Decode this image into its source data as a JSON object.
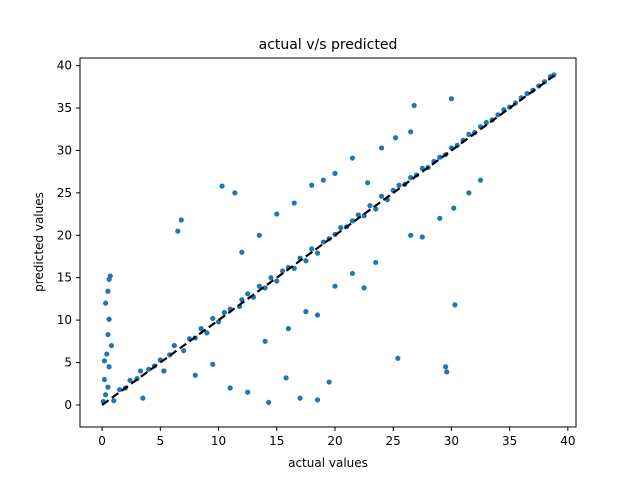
{
  "chart_data": {
    "type": "scatter",
    "title": "actual v/s predicted",
    "xlabel": "actual values",
    "ylabel": "predicted values",
    "xlim": [
      -1.9,
      40.7
    ],
    "ylim": [
      -2.6,
      40.9
    ],
    "xticks": [
      0,
      5,
      10,
      15,
      20,
      25,
      30,
      35,
      40
    ],
    "yticks": [
      0,
      5,
      10,
      15,
      20,
      25,
      30,
      35,
      40
    ],
    "grid": false,
    "colors": {
      "points": "#1f77b4",
      "reference_line": "#000000"
    },
    "series": [
      {
        "kind": "points",
        "marker": "circle",
        "points": [
          [
            0.1,
            0.4
          ],
          [
            0.3,
            1.2
          ],
          [
            0.5,
            2.1
          ],
          [
            0.2,
            3.0
          ],
          [
            0.6,
            4.5
          ],
          [
            0.4,
            6.0
          ],
          [
            0.5,
            8.3
          ],
          [
            0.6,
            10.1
          ],
          [
            0.3,
            12.0
          ],
          [
            0.5,
            13.4
          ],
          [
            0.6,
            14.8
          ],
          [
            0.7,
            15.2
          ],
          [
            0.2,
            5.2
          ],
          [
            0.8,
            7.0
          ],
          [
            1.0,
            0.5
          ],
          [
            1.5,
            1.8
          ],
          [
            2.0,
            2.0
          ],
          [
            2.4,
            2.9
          ],
          [
            3.0,
            3.1
          ],
          [
            3.3,
            4.0
          ],
          [
            3.5,
            0.8
          ],
          [
            4.0,
            4.2
          ],
          [
            4.5,
            4.6
          ],
          [
            5.0,
            5.3
          ],
          [
            5.3,
            4.0
          ],
          [
            5.8,
            5.9
          ],
          [
            6.2,
            7.0
          ],
          [
            6.5,
            20.5
          ],
          [
            6.8,
            21.8
          ],
          [
            7.0,
            6.4
          ],
          [
            7.5,
            7.8
          ],
          [
            8.0,
            7.9
          ],
          [
            8.5,
            9.0
          ],
          [
            9.0,
            8.5
          ],
          [
            9.5,
            10.2
          ],
          [
            10.0,
            9.8
          ],
          [
            10.3,
            25.8
          ],
          [
            10.5,
            10.9
          ],
          [
            11.0,
            11.3
          ],
          [
            11.4,
            25.0
          ],
          [
            11.8,
            11.6
          ],
          [
            12.0,
            12.4
          ],
          [
            12.5,
            13.1
          ],
          [
            13.0,
            12.7
          ],
          [
            13.5,
            14.0
          ],
          [
            14.0,
            13.8
          ],
          [
            14.3,
            0.3
          ],
          [
            14.5,
            15.0
          ],
          [
            15.0,
            14.6
          ],
          [
            15.5,
            15.8
          ],
          [
            16.0,
            16.2
          ],
          [
            16.5,
            16.1
          ],
          [
            17.0,
            17.3
          ],
          [
            17.5,
            17.0
          ],
          [
            18.0,
            18.4
          ],
          [
            18.5,
            17.9
          ],
          [
            19.0,
            19.2
          ],
          [
            19.5,
            19.6
          ],
          [
            20.0,
            20.1
          ],
          [
            20.5,
            20.9
          ],
          [
            21.0,
            21.0
          ],
          [
            21.5,
            21.7
          ],
          [
            22.0,
            22.4
          ],
          [
            22.5,
            22.3
          ],
          [
            23.0,
            23.5
          ],
          [
            23.5,
            23.1
          ],
          [
            24.0,
            24.6
          ],
          [
            24.5,
            24.2
          ],
          [
            25.0,
            25.3
          ],
          [
            25.4,
            5.5
          ],
          [
            25.5,
            25.9
          ],
          [
            26.0,
            26.0
          ],
          [
            26.5,
            26.8
          ],
          [
            27.0,
            27.1
          ],
          [
            27.5,
            27.9
          ],
          [
            28.0,
            28.0
          ],
          [
            28.5,
            28.7
          ],
          [
            29.0,
            29.2
          ],
          [
            29.5,
            29.5
          ],
          [
            30.0,
            30.3
          ],
          [
            30.5,
            30.6
          ],
          [
            31.0,
            31.2
          ],
          [
            31.5,
            31.9
          ],
          [
            32.0,
            32.1
          ],
          [
            32.5,
            32.8
          ],
          [
            33.0,
            33.3
          ],
          [
            33.5,
            33.6
          ],
          [
            34.0,
            34.2
          ],
          [
            34.5,
            34.8
          ],
          [
            35.0,
            35.1
          ],
          [
            35.5,
            35.6
          ],
          [
            36.0,
            36.2
          ],
          [
            36.5,
            36.7
          ],
          [
            37.0,
            37.1
          ],
          [
            37.5,
            37.6
          ],
          [
            38.0,
            38.1
          ],
          [
            38.5,
            38.7
          ],
          [
            38.8,
            38.9
          ],
          [
            12.0,
            18.0
          ],
          [
            13.5,
            20.0
          ],
          [
            15.0,
            22.5
          ],
          [
            16.5,
            23.8
          ],
          [
            18.0,
            25.9
          ],
          [
            19.0,
            26.5
          ],
          [
            20.0,
            27.3
          ],
          [
            21.5,
            29.1
          ],
          [
            22.8,
            26.2
          ],
          [
            24.0,
            30.3
          ],
          [
            25.2,
            31.5
          ],
          [
            26.5,
            32.2
          ],
          [
            26.8,
            35.3
          ],
          [
            30.0,
            36.1
          ],
          [
            14.0,
            7.5
          ],
          [
            16.0,
            9.0
          ],
          [
            17.5,
            11.0
          ],
          [
            18.5,
            10.6
          ],
          [
            20.0,
            14.0
          ],
          [
            21.5,
            15.5
          ],
          [
            22.5,
            13.8
          ],
          [
            23.5,
            16.8
          ],
          [
            26.5,
            20.0
          ],
          [
            27.5,
            19.8
          ],
          [
            29.0,
            22.0
          ],
          [
            30.2,
            23.2
          ],
          [
            30.3,
            11.8
          ],
          [
            31.5,
            25.0
          ],
          [
            32.5,
            26.5
          ],
          [
            29.5,
            4.5
          ],
          [
            29.6,
            3.9
          ],
          [
            17.0,
            0.8
          ],
          [
            18.5,
            0.6
          ],
          [
            15.8,
            3.2
          ],
          [
            12.5,
            1.5
          ],
          [
            11.0,
            2.0
          ],
          [
            8.0,
            3.5
          ],
          [
            9.5,
            4.8
          ],
          [
            19.5,
            2.7
          ]
        ]
      },
      {
        "kind": "line",
        "style": "dashed",
        "x": [
          0,
          38.8
        ],
        "y": [
          0,
          38.8
        ]
      }
    ]
  }
}
